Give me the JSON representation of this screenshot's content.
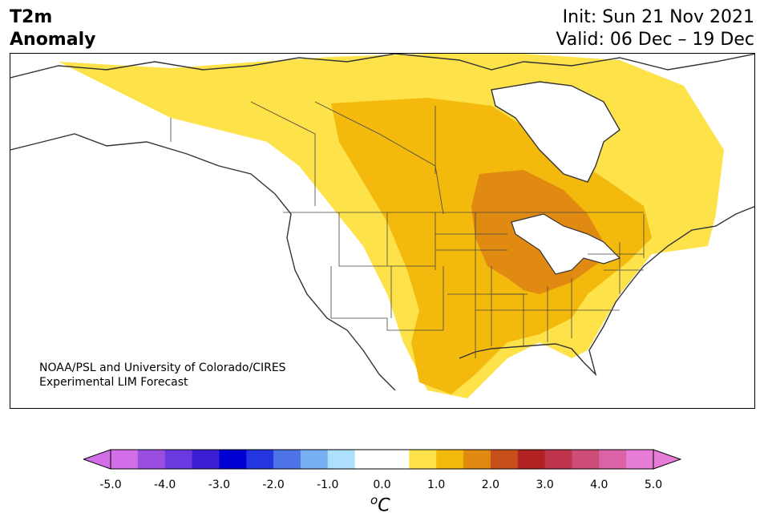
{
  "header": {
    "title_line1": "T2m",
    "title_line2": "Anomaly",
    "init": "Init: Sun 21 Nov 2021",
    "valid": "Valid: 06 Dec – 19 Dec"
  },
  "credit": {
    "line1": "NOAA/PSL and University of Colorado/CIRES",
    "line2": "Experimental LIM Forecast"
  },
  "colorbar": {
    "units_base": "o",
    "units_letter": "C",
    "ticks": [
      "-5.0",
      "-4.0",
      "-3.0",
      "-2.0",
      "-1.0",
      "0.0",
      "1.0",
      "2.0",
      "3.0",
      "4.0",
      "5.0"
    ],
    "colors": [
      "#d36ee9",
      "#9b4fe0",
      "#6a3ae0",
      "#3c1fd2",
      "#0000d4",
      "#2336e0",
      "#4f74e8",
      "#77b0f3",
      "#aee0fb",
      "#ffffff",
      "#ffffff",
      "#fde24a",
      "#f3b90c",
      "#e08a12",
      "#c7501a",
      "#b22222",
      "#c0344c",
      "#cc4d78",
      "#dc62a8",
      "#e87dd8"
    ],
    "under_color": "#d36ee9",
    "over_color": "#e87dd8"
  },
  "map": {
    "anomaly_colors": {
      "light": "#fde24a",
      "medium": "#f3b90c",
      "strong": "#e08a12"
    }
  }
}
